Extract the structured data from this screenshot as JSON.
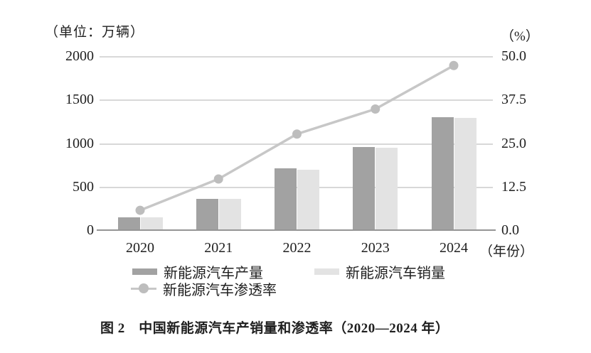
{
  "caption": "图 2　中国新能源汽车产销量和渗透率（2020—2024 年）",
  "colors": {
    "production_bar": "#a2a2a2",
    "sales_bar": "#e3e3e3",
    "penetration_line": "#c7c7c7",
    "penetration_marker": "#bdbdbd",
    "gridline": "#d8d8d8",
    "axis_line": "#959595",
    "text": "#1f1f1f"
  },
  "chart_data": {
    "type": "bar",
    "subtype": "grouped-bar-with-line",
    "title": "图 2　中国新能源汽车产销量和渗透率（2020—2024 年）",
    "categories": [
      "2020",
      "2021",
      "2022",
      "2023",
      "2024"
    ],
    "x_axis_suffix": "（年份）",
    "series": [
      {
        "name": "新能源汽车产量",
        "type": "bar",
        "axis": "left",
        "values": [
          135,
          350,
          700,
          950,
          1290
        ]
      },
      {
        "name": "新能源汽车销量",
        "type": "bar",
        "axis": "left",
        "values": [
          135,
          348,
          685,
          940,
          1285
        ]
      },
      {
        "name": "新能源汽车渗透率",
        "type": "line",
        "axis": "right",
        "values": [
          5.7,
          14.7,
          27.6,
          34.8,
          47.3
        ]
      }
    ],
    "left_axis": {
      "label": "（单位：万辆）",
      "ticks": [
        2000,
        1500,
        1000,
        500,
        0
      ],
      "range": [
        0,
        2000
      ]
    },
    "right_axis": {
      "label": "（%）",
      "ticks": [
        "50.0",
        "37.5",
        "25.0",
        "12.5",
        "0.0"
      ],
      "range": [
        0,
        50
      ]
    },
    "grid": true,
    "legend_position": "bottom"
  }
}
